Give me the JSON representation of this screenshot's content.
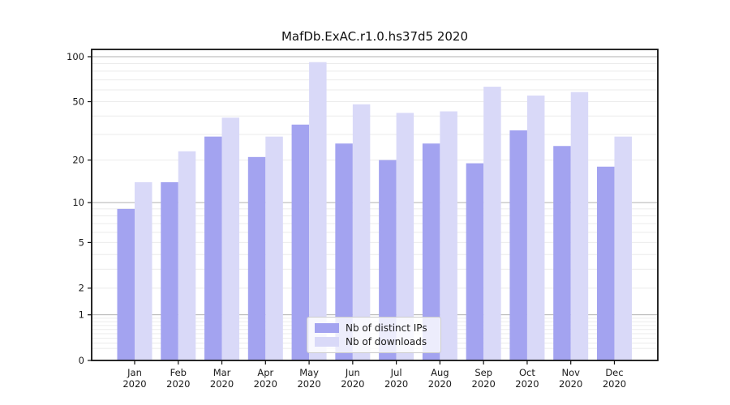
{
  "title": "MafDb.ExAC.r1.0.hs37d5 2020",
  "legend": {
    "items": [
      {
        "label": "Nb of distinct IPs",
        "color": "#a3a3f0"
      },
      {
        "label": "Nb of downloads",
        "color": "#d9d9f8"
      }
    ]
  },
  "chart_data": {
    "type": "bar",
    "title": "MafDb.ExAC.r1.0.hs37d5 2020",
    "categories": [
      "Jan 2020",
      "Feb 2020",
      "Mar 2020",
      "Apr 2020",
      "May 2020",
      "Jun 2020",
      "Jul 2020",
      "Aug 2020",
      "Sep 2020",
      "Oct 2020",
      "Nov 2020",
      "Dec 2020"
    ],
    "series": [
      {
        "name": "Nb of distinct IPs",
        "color": "#a3a3f0",
        "values": [
          9,
          14,
          29,
          21,
          35,
          26,
          20,
          26,
          19,
          32,
          25,
          18
        ]
      },
      {
        "name": "Nb of downloads",
        "color": "#d9d9f8",
        "values": [
          14,
          23,
          39,
          29,
          92,
          48,
          42,
          43,
          63,
          55,
          58,
          29
        ]
      }
    ],
    "xlabel": "",
    "ylabel": "",
    "yscale": "log1p",
    "yticks": [
      0,
      1,
      2,
      5,
      10,
      20,
      50,
      100
    ],
    "ytick_labels": [
      "0",
      "1",
      "2",
      "5",
      "10",
      "20",
      "50",
      "100"
    ],
    "minor_gridlines": [
      0.2,
      0.3,
      0.4,
      0.5,
      0.6,
      0.7,
      0.8,
      0.9,
      2,
      3,
      4,
      5,
      6,
      7,
      8,
      9,
      20,
      30,
      40,
      50,
      60,
      70,
      80,
      90
    ],
    "major_gridlines": [
      1,
      10,
      100
    ],
    "ylim": [
      0,
      112
    ],
    "grid": true,
    "legend_position": "lower center"
  },
  "colors": {
    "spine": "#111111",
    "major_grid": "#b0b0b0",
    "minor_grid": "#ebebeb",
    "tick_text": "#1a1a1a"
  }
}
